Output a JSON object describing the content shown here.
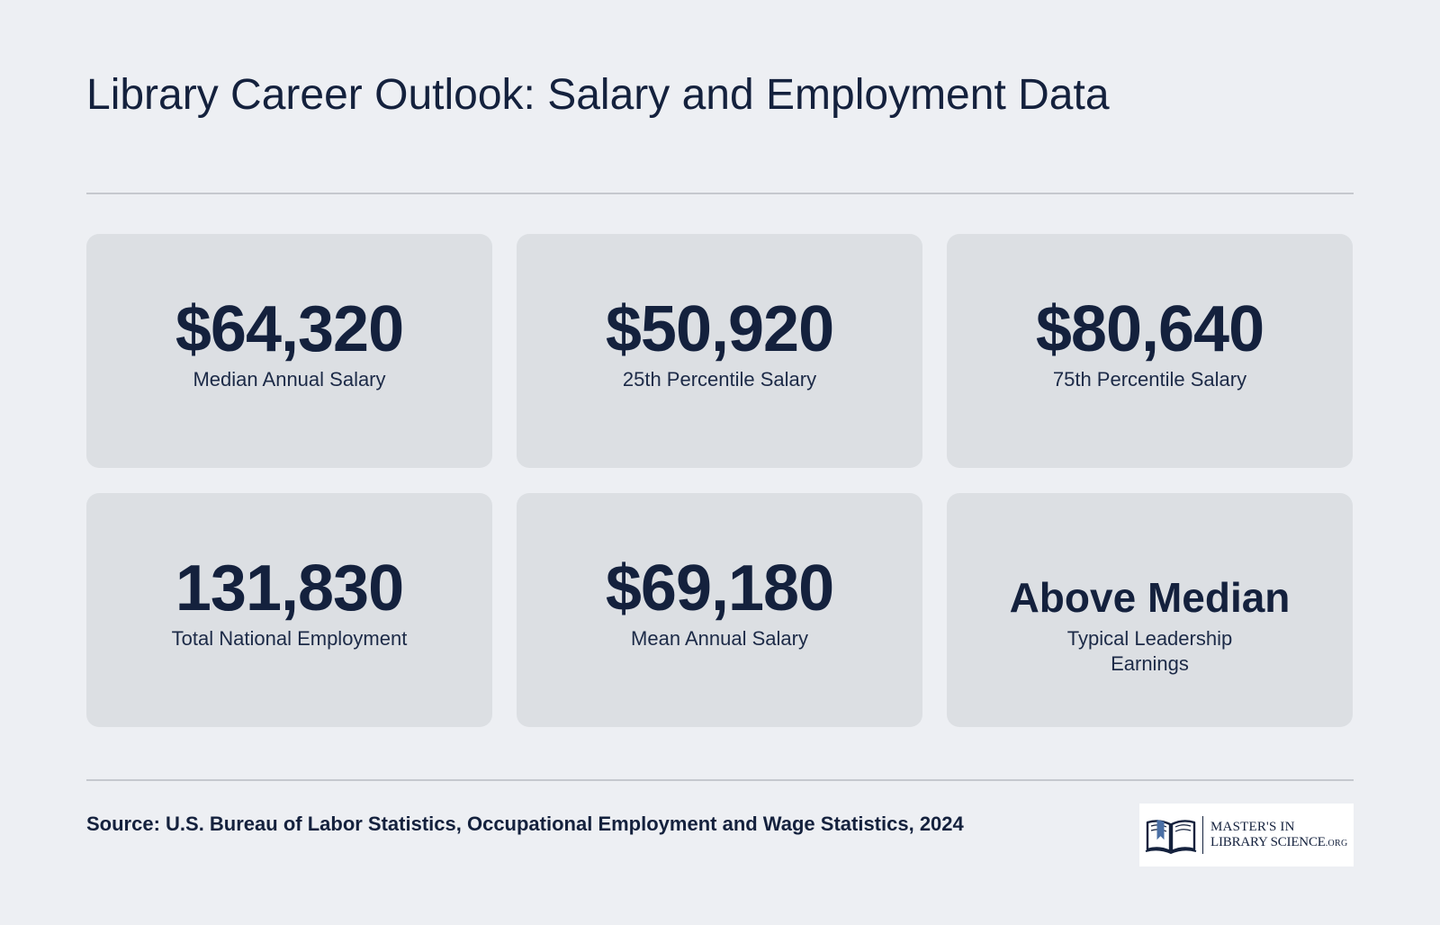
{
  "header": {
    "title": "Library Career Outlook: Salary and Employment Data"
  },
  "stats": [
    {
      "value": "$64,320",
      "label": "Median Annual Salary"
    },
    {
      "value": "$50,920",
      "label": "25th Percentile Salary"
    },
    {
      "value": "$80,640",
      "label": "75th Percentile Salary"
    },
    {
      "value": "131,830",
      "label": "Total National Employment"
    },
    {
      "value": "$69,180",
      "label": "Mean Annual Salary"
    },
    {
      "value": "Above Median",
      "label": "Typical Leadership Earnings"
    }
  ],
  "footer": {
    "source": "Source: U.S. Bureau of Labor Statistics, Occupational Employment and Wage Statistics, 2024",
    "logo": {
      "line1": "MASTER'S IN",
      "line2": "LIBRARY SCIENCE",
      "suffix": ".ORG",
      "icon": "open-book-icon"
    }
  },
  "colors": {
    "background": "#edeff3",
    "card": "#dcdfe3",
    "text": "#14213d",
    "rule": "#c5c8ce",
    "logo_accent": "#4a6fa5"
  }
}
